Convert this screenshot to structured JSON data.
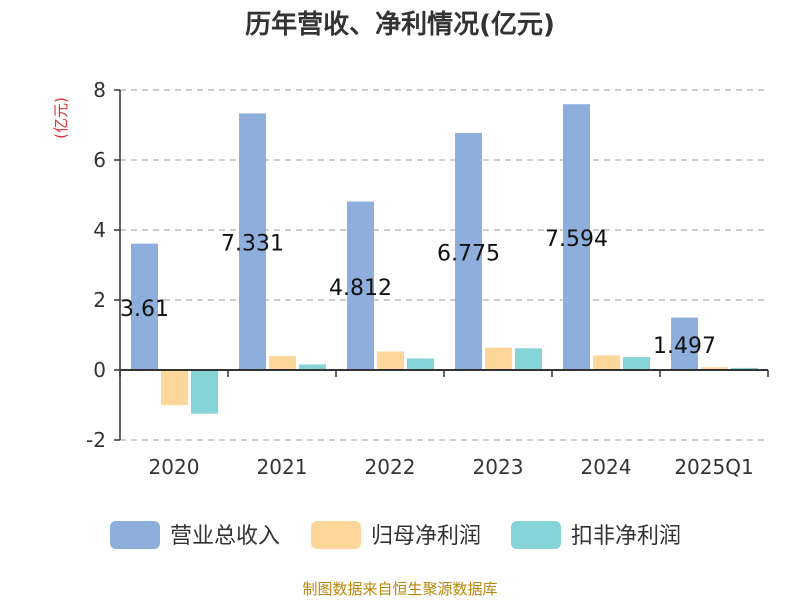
{
  "title": "历年营收、净利情况(亿元)",
  "source": "制图数据来自恒生聚源数据库",
  "colors": {
    "revenue": "#8eaedb",
    "net_profit": "#fdd699",
    "deducted_profit": "#85d4d8",
    "unit": "#e03030",
    "grid": "#bbbbbb",
    "axis": "#333333",
    "text": "#333333"
  },
  "chart_data": {
    "type": "bar",
    "unit_label": "(亿元)",
    "categories": [
      "2020",
      "2021",
      "2022",
      "2023",
      "2024",
      "2025Q1"
    ],
    "ylim": [
      -2,
      8
    ],
    "yticks": [
      "-2",
      "0",
      "2",
      "4",
      "6",
      "8"
    ],
    "grid": true,
    "legend_position": "bottom",
    "series": [
      {
        "name": "营业总收入",
        "values": [
          3.61,
          7.331,
          4.812,
          6.775,
          7.594,
          1.497
        ],
        "labels": [
          "3.61",
          "7.331",
          "4.812",
          "6.775",
          "7.594",
          "1.497"
        ]
      },
      {
        "name": "归母净利润",
        "values": [
          -1.0,
          0.4,
          0.53,
          0.64,
          0.42,
          0.08
        ]
      },
      {
        "name": "扣非净利润",
        "values": [
          -1.25,
          0.16,
          0.33,
          0.62,
          0.37,
          0.06
        ]
      }
    ]
  }
}
